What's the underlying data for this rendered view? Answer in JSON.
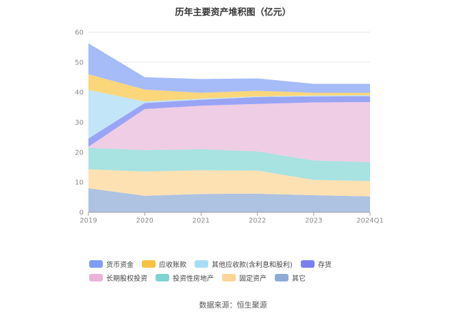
{
  "chart_data": {
    "type": "area",
    "stacked": true,
    "title": "历年主要资产堆积图（亿元）",
    "categories": [
      "2019",
      "2020",
      "2021",
      "2022",
      "2023",
      "2024Q1"
    ],
    "ylim": [
      0,
      60
    ],
    "yticks": [
      0,
      10,
      20,
      30,
      40,
      50,
      60
    ],
    "grid": true,
    "legend_position": "bottom",
    "series": [
      {
        "name": "其它",
        "color": "#aec2e2",
        "values": [
          8.0,
          5.5,
          6.1,
          6.2,
          5.7,
          5.3
        ]
      },
      {
        "name": "固定资产",
        "color": "#fde1b3",
        "values": [
          6.3,
          8.1,
          7.9,
          7.7,
          5.1,
          5.1
        ]
      },
      {
        "name": "投资性房地产",
        "color": "#a8e2e1",
        "values": [
          7.2,
          7.1,
          7.0,
          6.4,
          6.5,
          6.3
        ]
      },
      {
        "name": "长期股权投资",
        "color": "#efcde4",
        "values": [
          0.3,
          13.7,
          14.5,
          15.8,
          19.3,
          20.0
        ]
      },
      {
        "name": "存货",
        "color": "#9aa4f5",
        "values": [
          2.8,
          2.0,
          2.0,
          2.3,
          2.0,
          2.0
        ]
      },
      {
        "name": "其他应收款(含利息和股利)",
        "color": "#c2e5f8",
        "values": [
          16.2,
          0.5,
          0.3,
          0.2,
          0.3,
          0.3
        ]
      },
      {
        "name": "应收账款",
        "color": "#fbd67a",
        "values": [
          5.2,
          4.0,
          2.0,
          1.9,
          0.9,
          0.8
        ]
      },
      {
        "name": "货币资金",
        "color": "#a6bcf8",
        "values": [
          10.3,
          4.1,
          4.6,
          4.1,
          3.0,
          3.0
        ]
      }
    ]
  },
  "legend": [
    {
      "label": "货币资金",
      "color": "#7f9ef3"
    },
    {
      "label": "应收账款",
      "color": "#f7c23f"
    },
    {
      "label": "其他应收款(含利息和股利)",
      "color": "#a7dcf5"
    },
    {
      "label": "存货",
      "color": "#7a7ff0"
    },
    {
      "label": "长期股权投资",
      "color": "#e9b4d8"
    },
    {
      "label": "投资性房地产",
      "color": "#7ed3d1"
    },
    {
      "label": "固定资产",
      "color": "#fcd49a"
    },
    {
      "label": "其它",
      "color": "#8eaad9"
    }
  ],
  "source": "数据来源：恒生聚源"
}
